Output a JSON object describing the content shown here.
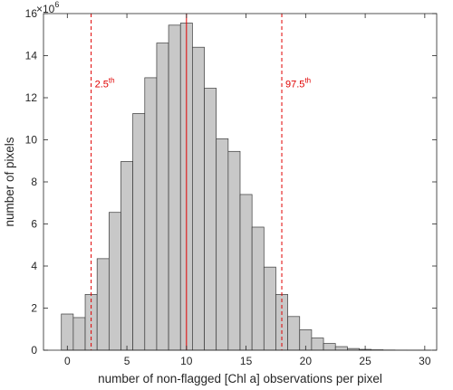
{
  "chart_data": {
    "type": "bar",
    "subtype": "histogram",
    "xlabel": "number of non-flagged [Chl a] observations per pixel",
    "ylabel": "number of pixels",
    "y_multiplier": {
      "base": "×10",
      "exponent": "6"
    },
    "xlim": [
      -2,
      31
    ],
    "ylim": [
      0,
      16
    ],
    "x_ticks": [
      0,
      5,
      10,
      15,
      20,
      25,
      30
    ],
    "y_ticks": [
      0,
      2,
      4,
      6,
      8,
      10,
      12,
      14,
      16
    ],
    "bin_width": 1,
    "bins": [
      {
        "x": 0,
        "value": 1.72
      },
      {
        "x": 1,
        "value": 1.55
      },
      {
        "x": 2,
        "value": 2.65
      },
      {
        "x": 3,
        "value": 4.35
      },
      {
        "x": 4,
        "value": 6.55
      },
      {
        "x": 5,
        "value": 8.97
      },
      {
        "x": 6,
        "value": 11.25
      },
      {
        "x": 7,
        "value": 12.95
      },
      {
        "x": 8,
        "value": 14.6
      },
      {
        "x": 9,
        "value": 15.45
      },
      {
        "x": 10,
        "value": 15.55
      },
      {
        "x": 11,
        "value": 14.4
      },
      {
        "x": 12,
        "value": 12.45
      },
      {
        "x": 13,
        "value": 10.05
      },
      {
        "x": 14,
        "value": 9.45
      },
      {
        "x": 15,
        "value": 7.4
      },
      {
        "x": 16,
        "value": 5.85
      },
      {
        "x": 17,
        "value": 3.95
      },
      {
        "x": 18,
        "value": 2.65
      },
      {
        "x": 19,
        "value": 1.6
      },
      {
        "x": 20,
        "value": 0.97
      },
      {
        "x": 21,
        "value": 0.58
      },
      {
        "x": 22,
        "value": 0.32
      },
      {
        "x": 23,
        "value": 0.17
      },
      {
        "x": 24,
        "value": 0.08
      },
      {
        "x": 25,
        "value": 0.04
      },
      {
        "x": 26,
        "value": 0.02
      },
      {
        "x": 27,
        "value": 0.01
      },
      {
        "x": 28,
        "value": 0.005
      },
      {
        "x": 29,
        "value": 0.002
      },
      {
        "x": 30,
        "value": 0.001
      }
    ],
    "vertical_lines": [
      {
        "name": "2.5th percentile",
        "x": 2,
        "style": "dashed",
        "label": "2.5",
        "label_sup": "th"
      },
      {
        "name": "mean",
        "x": 10,
        "style": "solid",
        "label": "",
        "label_sup": ""
      },
      {
        "name": "97.5th percentile",
        "x": 18,
        "style": "dashed",
        "label": "97.5",
        "label_sup": "th"
      }
    ],
    "grid": false,
    "colors": {
      "bar_fill": "#c8c8c8",
      "bar_edge": "#3a3a3a",
      "lines": "#e00000",
      "axis": "#262626"
    }
  }
}
